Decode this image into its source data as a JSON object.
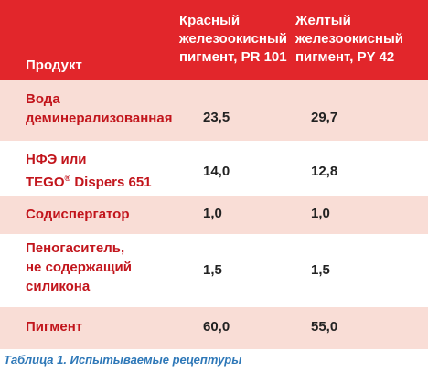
{
  "table": {
    "headers": {
      "product": "Продукт",
      "col1_lines": [
        "Красный",
        "железоокисный",
        "пигмент, PR 101"
      ],
      "col2_lines": [
        "Желтый",
        "железоокисный",
        "пигмент, PY 42"
      ]
    },
    "rows": [
      {
        "name_lines": [
          "Вода",
          "деминерализованная"
        ],
        "v1": "23,5",
        "v2": "29,7"
      },
      {
        "name_lines": [
          "НФЭ или",
          "TEGO"
        ],
        "name_sup": "®",
        "name_tail": " Dispers 651",
        "v1": "14,0",
        "v2": "12,8"
      },
      {
        "name_lines": [
          "Содиспергатор"
        ],
        "v1": "1,0",
        "v2": "1,0"
      },
      {
        "name_lines": [
          "Пеногаситель,",
          "не содержащий",
          "силикона"
        ],
        "v1": "1,5",
        "v2": "1,5"
      },
      {
        "name_lines": [
          "Пигмент"
        ],
        "v1": "60,0",
        "v2": "55,0"
      }
    ]
  },
  "caption": "Таблица 1. Испытываемые рецептуры",
  "colors": {
    "header_bg": "#e2262b",
    "band_bg": "#f9ddd6",
    "label_text": "#c2151c",
    "caption_text": "#2e78b8"
  }
}
